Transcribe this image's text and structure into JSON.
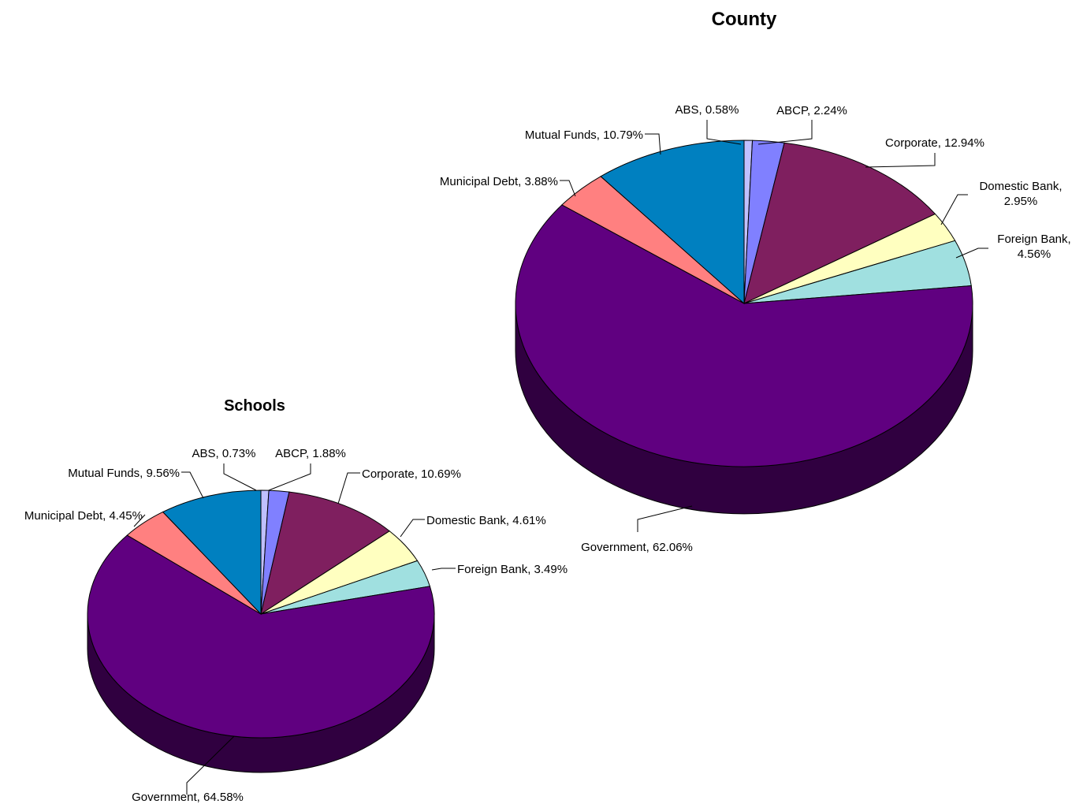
{
  "chart_data": [
    {
      "type": "pie",
      "title": "County",
      "legend": "none",
      "slices": [
        {
          "name": "ABS",
          "value": 0.58,
          "label": "ABS, 0.58%",
          "color": "#C0C0FF"
        },
        {
          "name": "ABCP",
          "value": 2.24,
          "label": "ABCP, 2.24%",
          "color": "#8080FF"
        },
        {
          "name": "Corporate",
          "value": 12.94,
          "label": "Corporate, 12.94%",
          "color": "#7F1F5F"
        },
        {
          "name": "Domestic Bank",
          "value": 2.95,
          "label": "Domestic Bank, 2.95%",
          "color": "#FFFFC0"
        },
        {
          "name": "Foreign Bank",
          "value": 4.56,
          "label": "Foreign Bank, 4.56%",
          "color": "#A0E0E0"
        },
        {
          "name": "Government",
          "value": 62.06,
          "label": "Government, 62.06%",
          "color": "#600080"
        },
        {
          "name": "Municipal Debt",
          "value": 3.88,
          "label": "Municipal Debt, 3.88%",
          "color": "#FF8080"
        },
        {
          "name": "Mutual Funds",
          "value": 10.79,
          "label": "Mutual Funds, 10.79%",
          "color": "#0080C0"
        }
      ]
    },
    {
      "type": "pie",
      "title": "Schools",
      "legend": "none",
      "slices": [
        {
          "name": "ABS",
          "value": 0.73,
          "label": "ABS, 0.73%",
          "color": "#C0C0FF"
        },
        {
          "name": "ABCP",
          "value": 1.88,
          "label": "ABCP, 1.88%",
          "color": "#8080FF"
        },
        {
          "name": "Corporate",
          "value": 10.69,
          "label": "Corporate, 10.69%",
          "color": "#7F1F5F"
        },
        {
          "name": "Domestic Bank",
          "value": 4.61,
          "label": "Domestic Bank, 4.61%",
          "color": "#FFFFC0"
        },
        {
          "name": "Foreign Bank",
          "value": 3.49,
          "label": "Foreign Bank, 3.49%",
          "color": "#A0E0E0"
        },
        {
          "name": "Government",
          "value": 64.58,
          "label": "Government, 64.58%",
          "color": "#600080"
        },
        {
          "name": "Municipal Debt",
          "value": 4.45,
          "label": "Municipal Debt, 4.45%",
          "color": "#FF8080"
        },
        {
          "name": "Mutual Funds",
          "value": 9.56,
          "label": "Mutual Funds, 9.56%",
          "color": "#0080C0"
        }
      ]
    }
  ]
}
